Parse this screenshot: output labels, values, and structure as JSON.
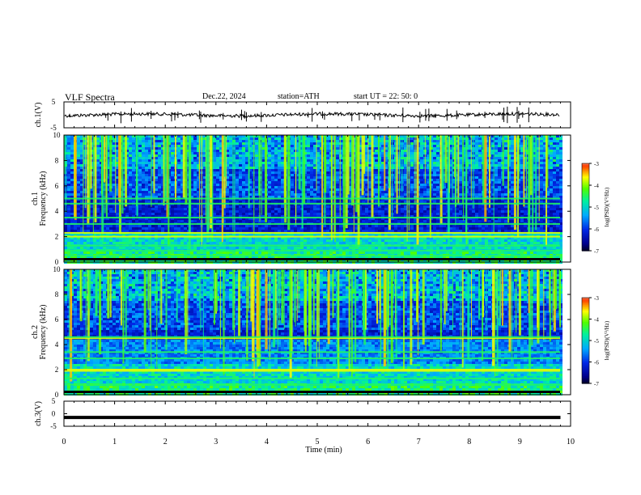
{
  "header": {
    "title": "VLF  Spectra",
    "date": "Dec.22, 2024",
    "station": "station=ATH",
    "start_ut": "start  UT  =    22: 50: 0"
  },
  "chart_data": [
    {
      "type": "line",
      "panel": "ch1-waveform",
      "ylabel": "ch.1(V)",
      "ylim": [
        -5,
        5
      ],
      "yticks": [
        5,
        -5
      ],
      "xlim": [
        0,
        10
      ],
      "description_series": "noisy trace near zero with spikes",
      "series": [
        {
          "name": "",
          "level": 0
        }
      ]
    },
    {
      "type": "heatmap",
      "panel": "ch1-spectrogram",
      "ylabel": "ch.1\nFrequency  (kHz)",
      "ylim": [
        0,
        10
      ],
      "yticks": [
        0,
        2,
        4,
        6,
        8,
        10
      ],
      "xlim": [
        0,
        10
      ],
      "bands_khz": [
        0.5,
        0.9,
        1.3,
        2.0,
        2.3,
        3.0,
        3.5,
        4.6,
        5.0
      ],
      "colorbar": {
        "label": "log(PSD)(V²/Hz)",
        "ticks": [
          -3,
          -4,
          -5,
          -6,
          -7
        ],
        "range": [
          -7,
          -3
        ]
      }
    },
    {
      "type": "heatmap",
      "panel": "ch2-spectrogram",
      "ylabel": "ch.2\nFrequency  (kHz)",
      "ylim": [
        0,
        10
      ],
      "yticks": [
        0,
        2,
        4,
        6,
        8,
        10
      ],
      "xlim": [
        0,
        10
      ],
      "bands_khz": [
        0.8,
        1.3,
        1.9,
        2.0,
        2.9,
        3.4,
        4.5,
        4.6
      ],
      "colorbar": {
        "label": "log(PSD)(V²/Hz)",
        "ticks": [
          -3,
          -4,
          -5,
          -6,
          -7
        ],
        "range": [
          -7,
          -3
        ]
      }
    },
    {
      "type": "line",
      "panel": "ch3-waveform",
      "ylabel": "ch.3(V)",
      "ylim": [
        -5,
        5
      ],
      "yticks": [
        5,
        0,
        -5
      ],
      "xlim": [
        0,
        10
      ],
      "series": [
        {
          "name": "",
          "x": [
            0,
            9.8
          ],
          "y": [
            -1.5,
            -1.5
          ]
        }
      ]
    }
  ],
  "xaxis": {
    "label": "Time  (min)",
    "ticks": [
      0,
      1,
      2,
      3,
      4,
      5,
      6,
      7,
      8,
      9,
      10
    ]
  }
}
